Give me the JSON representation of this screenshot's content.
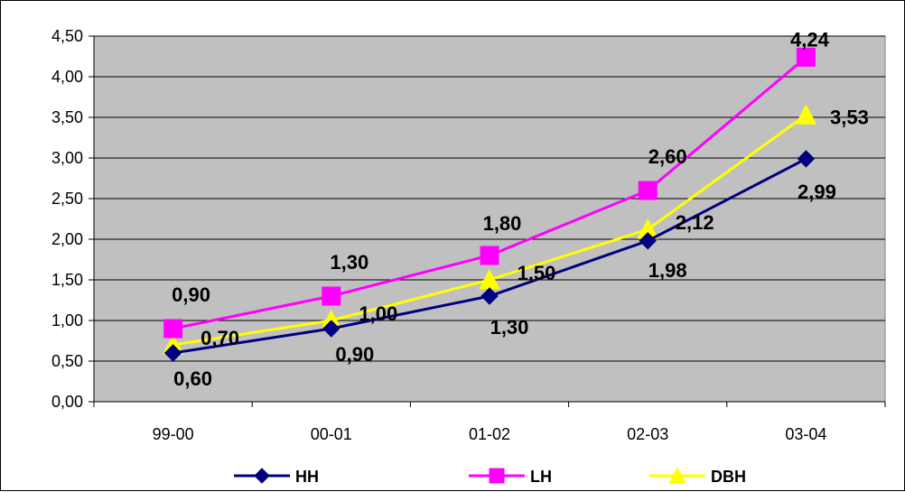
{
  "chart_data": {
    "type": "line",
    "categories": [
      "99-00",
      "00-01",
      "01-02",
      "02-03",
      "03-04"
    ],
    "ylim": [
      0,
      4.5
    ],
    "yticks": [
      0,
      0.5,
      1.0,
      1.5,
      2.0,
      2.5,
      3.0,
      3.5,
      4.0,
      4.5
    ],
    "ytick_labels": [
      "0,00",
      "0,50",
      "1,00",
      "1,50",
      "2,00",
      "2,50",
      "3,00",
      "3,50",
      "4,00",
      "4,50"
    ],
    "grid": true,
    "legend_position": "bottom",
    "plot_background": "#c0c0c0",
    "series": [
      {
        "name": "HH",
        "color": "#000080",
        "marker": "diamond",
        "values": [
          0.6,
          0.9,
          1.3,
          1.98,
          2.99
        ],
        "labels": [
          "0,60",
          "0,90",
          "1,30",
          "1,98",
          "2,99"
        ]
      },
      {
        "name": "LH",
        "color": "#ff00ff",
        "marker": "square",
        "values": [
          0.9,
          1.3,
          1.8,
          2.6,
          4.24
        ],
        "labels": [
          "0,90",
          "1,30",
          "1,80",
          "2,60",
          "4,24"
        ]
      },
      {
        "name": "DBH",
        "color": "#ffff00",
        "marker": "triangle",
        "values": [
          0.7,
          1.0,
          1.5,
          2.12,
          3.53
        ],
        "labels": [
          "0,70",
          "1,00",
          "1,50",
          "2,12",
          "3,53"
        ]
      }
    ]
  }
}
